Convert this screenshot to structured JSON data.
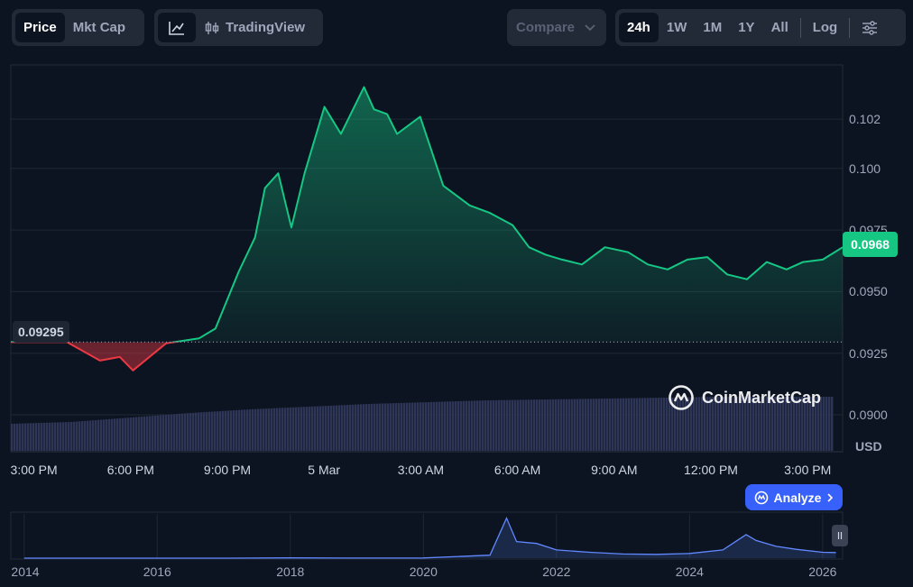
{
  "toolbar": {
    "metric_tabs": [
      {
        "label": "Price",
        "active": true
      },
      {
        "label": "Mkt Cap",
        "active": false
      }
    ],
    "chart_type": {
      "line_icon": "line-chart-icon",
      "tradingview_label": "TradingView",
      "candle_icon": "candlestick-icon"
    },
    "compare_label": "Compare",
    "ranges": [
      {
        "label": "24h",
        "active": true
      },
      {
        "label": "1W",
        "active": false
      },
      {
        "label": "1M",
        "active": false
      },
      {
        "label": "1Y",
        "active": false
      },
      {
        "label": "All",
        "active": false
      }
    ],
    "log_label": "Log",
    "settings_icon": "sliders-icon"
  },
  "colors": {
    "up": "#16c784",
    "down": "#ea3943",
    "volume": "#2e3658",
    "overview_line": "#6188ff",
    "accent": "#3861fb"
  },
  "price_tag": "0.0968",
  "open_price_label": "0.09295",
  "currency_label": "USD",
  "watermark": "CoinMarketCap",
  "analyze_label": "Analyze",
  "chart_data": {
    "type": "area",
    "open_price": 0.09295,
    "current_price": 0.0968,
    "ylim": [
      0.0885,
      0.1042
    ],
    "y_ticks": [
      0.09,
      0.0925,
      0.095,
      0.0975,
      0.1,
      0.102
    ],
    "y_tick_labels": [
      "0.0900",
      "0.0925",
      "0.0950",
      "0.0975",
      "0.100",
      "0.102"
    ],
    "x_tick_labels": [
      "3:00 PM",
      "6:00 PM",
      "9:00 PM",
      "5 Mar",
      "3:00 AM",
      "6:00 AM",
      "9:00 AM",
      "12:00 PM",
      "3:00 PM"
    ],
    "x_tick_hours": [
      0.0,
      2.93,
      5.86,
      8.79,
      11.72,
      14.65,
      17.58,
      20.51,
      23.44
    ],
    "xlim_hours": [
      -0.7,
      24.5
    ],
    "x_hours": [
      -0.7,
      1.0,
      2.0,
      2.6,
      3.0,
      3.5,
      4.0,
      5.0,
      5.5,
      6.2,
      6.7,
      7.0,
      7.4,
      7.8,
      8.2,
      8.8,
      9.3,
      10.0,
      10.3,
      10.7,
      11.0,
      11.7,
      12.4,
      13.2,
      13.8,
      14.5,
      15.0,
      15.5,
      16.0,
      16.6,
      17.3,
      18.0,
      18.6,
      19.2,
      19.8,
      20.4,
      21.0,
      21.6,
      22.2,
      22.8,
      23.3,
      23.9,
      24.5
    ],
    "price": [
      0.09295,
      0.09295,
      0.0922,
      0.09235,
      0.0918,
      0.09235,
      0.0929,
      0.0931,
      0.0935,
      0.0958,
      0.0972,
      0.0992,
      0.0998,
      0.0976,
      0.0998,
      0.1025,
      0.1014,
      0.1033,
      0.1024,
      0.1022,
      0.1014,
      0.1021,
      0.0993,
      0.0985,
      0.0982,
      0.0977,
      0.0968,
      0.0965,
      0.0963,
      0.0961,
      0.0968,
      0.0966,
      0.0961,
      0.0959,
      0.0963,
      0.0964,
      0.0957,
      0.0955,
      0.0962,
      0.0959,
      0.0962,
      0.0963,
      0.0968
    ],
    "volume_level_fraction": [
      0.3,
      0.32,
      0.37,
      0.42,
      0.46,
      0.49,
      0.52,
      0.54,
      0.56,
      0.57,
      0.58,
      0.59,
      0.6,
      0.6,
      0.6
    ],
    "overview": {
      "type": "line",
      "x_tick_labels": [
        "2014",
        "2016",
        "2018",
        "2020",
        "2022",
        "2024",
        "2026"
      ],
      "x_years": [
        2014,
        2015,
        2016,
        2017,
        2018,
        2019,
        2020,
        2021,
        2021.25,
        2021.4,
        2021.7,
        2022,
        2022.5,
        2023,
        2023.5,
        2024,
        2024.5,
        2024.85,
        2025,
        2025.3,
        2025.6,
        2026,
        2026.2
      ],
      "price": [
        0.0002,
        0.0002,
        0.0003,
        0.0003,
        0.004,
        0.002,
        0.003,
        0.05,
        0.68,
        0.28,
        0.25,
        0.14,
        0.1,
        0.07,
        0.065,
        0.08,
        0.14,
        0.4,
        0.3,
        0.2,
        0.15,
        0.1,
        0.095
      ],
      "xlim": [
        2013.8,
        2026.3
      ],
      "ylim": [
        0,
        0.75
      ]
    }
  }
}
